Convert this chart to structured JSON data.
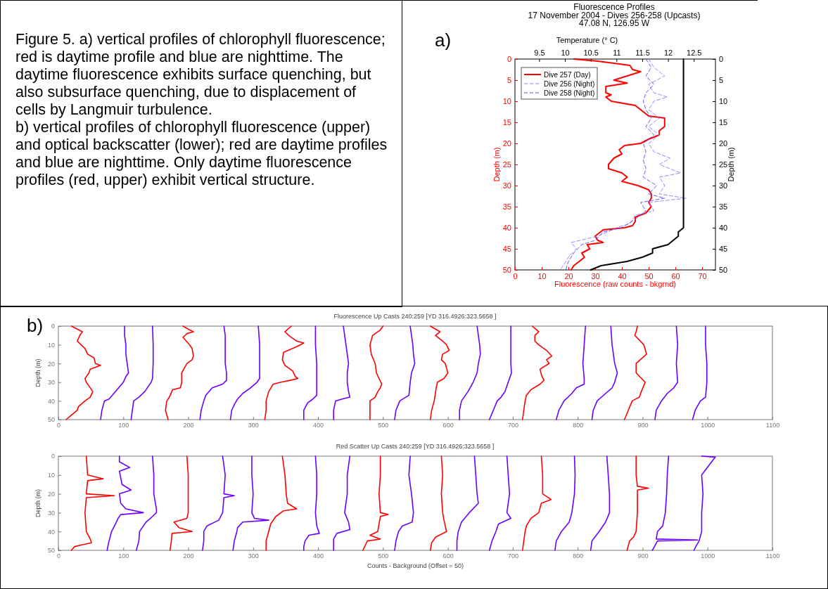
{
  "chart_data": [
    {
      "type": "other",
      "annotations": [
        "Figure 5.  a) vertical profiles of chlorophyll fluorescence; red is daytime profile and blue are nighttime.  The daytime fluorescence exhibits surface quenching, but also subsurface quenching, due to displacement of cells by Langmuir turbulence.",
        "b) vertical profiles of chlorophyll fluorescence (upper) and optical backscatter (lower); red are daytime profiles and blue are nighttime.  Only daytime fluorescence profiles (red, upper) exhibit vertical structure."
      ]
    },
    {
      "type": "line",
      "title": "Fluorescence Profiles",
      "subtitle": "17 November 2004 - Dives 256-258 (Upcasts)\n47.08 N, 126.95 W",
      "xlabel": "Fluorescence (raw counts - bkgrnd)",
      "x2label": "Temperature (° C)",
      "ylabel": "Depth (m)",
      "y2label": "Depth (m)",
      "annotations": [
        "a)"
      ],
      "xlim": [
        0,
        75
      ],
      "xticks": [
        0,
        10,
        20,
        30,
        40,
        50,
        60,
        70
      ],
      "x2lim": [
        9.03,
        12.92
      ],
      "x2ticks": [
        9.5,
        10,
        10.5,
        11,
        11.5,
        12,
        12.5
      ],
      "ylim": [
        50,
        0
      ],
      "yticks": [
        0,
        5,
        10,
        15,
        20,
        25,
        30,
        35,
        40,
        45,
        50
      ],
      "y2lim": [
        50,
        0
      ],
      "y2ticks": [
        0,
        5,
        10,
        15,
        20,
        25,
        30,
        35,
        40,
        45,
        50
      ],
      "legend": "top left",
      "series": [
        {
          "name": "Dive 257 (Day)",
          "color": "#ff0000",
          "line_style": "solid",
          "x": [
            22,
            31,
            43,
            44,
            47,
            37,
            42,
            34,
            34,
            36,
            34,
            36,
            45,
            47,
            50,
            56,
            56,
            54,
            54,
            50,
            47,
            41,
            39,
            40,
            37,
            35,
            35,
            40,
            42,
            40,
            46,
            50,
            51,
            51,
            50,
            51,
            49,
            45,
            45,
            44,
            41,
            33,
            32,
            30,
            31,
            33,
            27,
            28,
            25,
            26,
            24,
            22,
            21
          ],
          "values": [
            0,
            0.5,
            1.5,
            2.5,
            3,
            5,
            5.7,
            6.5,
            8,
            8.5,
            9,
            10,
            11,
            12,
            13.5,
            14,
            16,
            17,
            18,
            19,
            20,
            20.5,
            21.5,
            22.5,
            23.5,
            25,
            26,
            27,
            28,
            29,
            30,
            31,
            32,
            33,
            34,
            35,
            36.5,
            37.5,
            38.5,
            39.5,
            40,
            40.5,
            41,
            42,
            43,
            43.5,
            44,
            45,
            46,
            47,
            48,
            49,
            50
          ]
        },
        {
          "name": "Dive 256 (Night)",
          "color": "#8080ff",
          "line_style": "dashed",
          "x": [
            50,
            52,
            56,
            50,
            52,
            57,
            52,
            50,
            54,
            50,
            54,
            50,
            52,
            58,
            54,
            62,
            54,
            56,
            54,
            64,
            50,
            52,
            45,
            43,
            38,
            31,
            21,
            23,
            20,
            17
          ],
          "values": [
            0,
            2,
            4,
            6,
            8,
            9,
            10,
            12,
            14,
            16,
            18,
            20,
            22,
            23.5,
            25,
            27,
            28,
            30,
            32,
            33,
            34,
            36,
            37,
            39,
            40,
            42,
            43.5,
            45,
            47,
            50
          ]
        },
        {
          "name": "Dive 258 (Night)",
          "color": "#4d4dff",
          "line_style": "dashed",
          "x": [
            49,
            51,
            49,
            52,
            49,
            48,
            49,
            51,
            49,
            52,
            48,
            49,
            48,
            49,
            48,
            53,
            50,
            56,
            47,
            49,
            45,
            40,
            33,
            30,
            25,
            22,
            20,
            19
          ],
          "values": [
            0,
            2,
            4,
            6,
            8,
            10,
            12,
            14,
            16,
            18,
            20,
            22,
            24,
            26,
            28,
            30,
            32,
            33,
            34,
            36,
            38,
            40,
            41,
            43,
            44,
            46,
            48,
            50
          ]
        },
        {
          "color": "#000000",
          "line_style": "solid",
          "axis": "x2",
          "x": [
            12.3,
            12.3,
            12.3,
            12.2,
            12.2,
            12.1,
            12,
            11.7,
            11.7,
            11.5,
            11.2,
            10.7,
            10.5
          ],
          "values": [
            0,
            39,
            40,
            41,
            42,
            43,
            44,
            45,
            46,
            47,
            48,
            49,
            50
          ]
        }
      ]
    },
    {
      "type": "line",
      "title": "Fluorescence Up Casts 240:259 [YD 316.4926:323.5658 ]",
      "ylabel": "Depth (m)",
      "annotations": [
        "b)"
      ],
      "xlim": [
        0,
        1100
      ],
      "xticks": [
        0,
        100,
        200,
        300,
        400,
        500,
        600,
        700,
        800,
        900,
        1000,
        1100
      ],
      "ylim": [
        50,
        0
      ],
      "yticks": [
        0,
        10,
        20,
        30,
        40,
        50
      ],
      "series": [
        {
          "color": "#ff0000",
          "x": [
            20,
            37,
            33,
            29,
            35,
            41,
            45,
            55,
            57,
            65,
            49,
            47,
            41,
            43,
            53,
            49,
            41,
            31,
            29,
            22,
            12
          ],
          "values": [
            0,
            3,
            5,
            8,
            10,
            12,
            15,
            17,
            20,
            21,
            23,
            25,
            28,
            30,
            35,
            38,
            40,
            43,
            45,
            47,
            50
          ]
        },
        {
          "color": "#6a00ff",
          "x": [
            102,
            102,
            104,
            104,
            106,
            108,
            104,
            100,
            88,
            78,
            71,
            67,
            65
          ],
          "values": [
            0,
            5,
            10,
            15,
            20,
            25,
            27,
            30,
            35,
            39,
            40,
            45,
            50
          ]
        },
        {
          "color": "#6a00ff",
          "x": [
            145,
            146,
            146,
            145,
            143,
            133,
            124,
            116,
            114,
            112
          ],
          "values": [
            0,
            10,
            20,
            28,
            30,
            35,
            38,
            40,
            45,
            50
          ]
        },
        {
          "color": "#ff0000",
          "x": [
            192,
            202,
            208,
            198,
            192,
            202,
            206,
            208,
            206,
            198,
            190,
            190,
            188,
            176,
            171,
            167,
            165,
            169
          ],
          "values": [
            0,
            2,
            3,
            4,
            6,
            10,
            12,
            16,
            18,
            20,
            25,
            30,
            33,
            34,
            38,
            40,
            45,
            50
          ]
        },
        {
          "color": "#6a00ff",
          "x": [
            255,
            257,
            257,
            257,
            259,
            259,
            253,
            237,
            227,
            224,
            220,
            218
          ],
          "values": [
            0,
            5,
            10,
            20,
            25,
            29,
            31,
            33,
            37,
            40,
            45,
            50
          ]
        },
        {
          "color": "#6a00ff",
          "x": [
            308,
            310,
            310,
            310,
            306,
            296,
            284,
            276,
            271,
            267,
            265
          ],
          "values": [
            0,
            10,
            20,
            28,
            30,
            33,
            36,
            39,
            42,
            45,
            50
          ]
        },
        {
          "color": "#ff0000",
          "x": [
            359,
            349,
            355,
            367,
            378,
            367,
            347,
            345,
            349,
            361,
            365,
            369,
            357,
            343,
            331,
            324,
            320,
            320,
            318
          ],
          "values": [
            0,
            3,
            5,
            8,
            9,
            11,
            14,
            18,
            21,
            24,
            27,
            28,
            29,
            30,
            31,
            35,
            40,
            45,
            50
          ]
        },
        {
          "color": "#6a00ff",
          "x": [
            396,
            396,
            398,
            398,
            398,
            392,
            384,
            378,
            378
          ],
          "values": [
            0,
            10,
            20,
            30,
            37,
            39,
            41,
            45,
            50
          ]
        },
        {
          "color": "#6a00ff",
          "x": [
            439,
            441,
            443,
            445,
            447,
            445,
            445,
            447,
            449,
            437,
            427,
            424,
            424
          ],
          "values": [
            0,
            5,
            10,
            15,
            20,
            25,
            30,
            35,
            38,
            39,
            40,
            45,
            50
          ]
        },
        {
          "color": "#ff0000",
          "x": [
            500,
            496,
            484,
            480,
            482,
            488,
            490,
            494,
            498,
            496,
            492,
            488,
            480,
            480,
            480
          ],
          "values": [
            0,
            2,
            5,
            10,
            15,
            20,
            25,
            28,
            31,
            33,
            35,
            38,
            40,
            45,
            50
          ]
        },
        {
          "color": "#6a00ff",
          "x": [
            542,
            544,
            546,
            547,
            549,
            544,
            542,
            540,
            526,
            520,
            518
          ],
          "values": [
            0,
            5,
            10,
            15,
            20,
            25,
            30,
            37,
            40,
            45,
            50
          ]
        },
        {
          "color": "#ff0000",
          "x": [
            573,
            588,
            581,
            592,
            598,
            602,
            592,
            590,
            596,
            600,
            594,
            584,
            582,
            579,
            575,
            573
          ],
          "values": [
            0,
            3,
            5,
            8,
            10,
            13,
            15,
            18,
            20,
            25,
            28,
            30,
            33,
            40,
            45,
            50
          ]
        },
        {
          "color": "#6a00ff",
          "x": [
            645,
            647,
            649,
            650,
            647,
            645,
            639,
            631,
            621,
            618,
            618
          ],
          "values": [
            0,
            5,
            10,
            15,
            20,
            25,
            30,
            35,
            40,
            45,
            50
          ]
        },
        {
          "color": "#6a00ff",
          "x": [
            697,
            697,
            697,
            698,
            693,
            688,
            682,
            676,
            670,
            664
          ],
          "values": [
            0,
            10,
            20,
            25,
            30,
            35,
            38,
            40,
            45,
            50
          ]
        },
        {
          "color": "#ff0000",
          "x": [
            730,
            740,
            734,
            734,
            740,
            752,
            760,
            752,
            756,
            742,
            744,
            748,
            742,
            728,
            721,
            719,
            717,
            715
          ],
          "values": [
            0,
            3,
            5,
            8,
            10,
            13,
            16,
            18,
            20,
            23,
            26,
            29,
            31,
            34,
            37,
            40,
            45,
            50
          ]
        },
        {
          "color": "#6a00ff",
          "x": [
            812,
            810,
            808,
            810,
            810,
            798,
            791,
            779,
            771,
            767
          ],
          "values": [
            0,
            10,
            20,
            28,
            31,
            33,
            36,
            40,
            45,
            50
          ]
        },
        {
          "color": "#6a00ff",
          "x": [
            851,
            853,
            857,
            861,
            857,
            853,
            843,
            830,
            824,
            822
          ],
          "values": [
            0,
            10,
            20,
            25,
            30,
            33,
            36,
            40,
            45,
            50
          ]
        },
        {
          "color": "#ff0000",
          "x": [
            892,
            890,
            888,
            902,
            906,
            890,
            890,
            904,
            898,
            895,
            884,
            878,
            872
          ],
          "values": [
            0,
            3,
            5,
            10,
            15,
            20,
            25,
            30,
            35,
            38,
            40,
            45,
            50
          ]
        },
        {
          "color": "#6a00ff",
          "x": [
            952,
            954,
            952,
            954,
            948,
            938,
            929,
            921,
            919
          ],
          "values": [
            0,
            10,
            20,
            30,
            33,
            36,
            40,
            45,
            50
          ]
        },
        {
          "color": "#6a00ff",
          "x": [
            997,
            997,
            999,
            999,
            997,
            989,
            981,
            977
          ],
          "values": [
            0,
            10,
            20,
            30,
            38,
            40,
            45,
            50
          ]
        }
      ]
    },
    {
      "type": "line",
      "title": "Red Scatter Up Casts 240:259 [YD 316.4926:323.5658 ]",
      "xlabel": "Counts - Background (Offset = 50)",
      "ylabel": "Depth (m)",
      "xlim": [
        0,
        1100
      ],
      "xticks": [
        0,
        100,
        200,
        300,
        400,
        500,
        600,
        700,
        800,
        900,
        1000,
        1100
      ],
      "ylim": [
        50,
        0
      ],
      "yticks": [
        0,
        10,
        20,
        30,
        40,
        50
      ],
      "series": [
        {
          "color": "#ff0000",
          "x": [
            43,
            45,
            69,
            45,
            43,
            86,
            43,
            41,
            43,
            49,
            51,
            37,
            25,
            20
          ],
          "values": [
            0,
            10,
            12,
            13,
            20,
            21,
            22,
            30,
            40,
            44,
            46,
            47,
            48,
            50
          ]
        },
        {
          "color": "#6a00ff",
          "x": [
            94,
            94,
            110,
            94,
            98,
            112,
            94,
            96,
            104,
            131,
            96,
            92,
            88,
            82,
            78,
            75
          ],
          "values": [
            0,
            3,
            6,
            8,
            15,
            18,
            20,
            25,
            28,
            30,
            31,
            33,
            36,
            40,
            45,
            50
          ]
        },
        {
          "color": "#6a00ff",
          "x": [
            145,
            147,
            147,
            151,
            151,
            145,
            135,
            129,
            125,
            124,
            120
          ],
          "values": [
            0,
            10,
            20,
            28,
            30,
            32,
            35,
            38,
            40,
            45,
            50
          ]
        },
        {
          "color": "#ff0000",
          "x": [
            198,
            200,
            200,
            200,
            198,
            178,
            186,
            206,
            175,
            174,
            172
          ],
          "values": [
            0,
            10,
            20,
            30,
            33,
            35,
            38,
            40,
            41,
            45,
            50
          ]
        },
        {
          "color": "#6a00ff",
          "x": [
            253,
            257,
            255,
            271,
            255,
            253,
            247,
            229,
            224,
            224,
            222
          ],
          "values": [
            0,
            10,
            20,
            21,
            22,
            30,
            34,
            37,
            40,
            45,
            50
          ]
        },
        {
          "color": "#6a00ff",
          "x": [
            298,
            298,
            300,
            298,
            302,
            324,
            284,
            276,
            275,
            271,
            269
          ],
          "values": [
            0,
            10,
            20,
            30,
            33,
            34,
            35,
            38,
            40,
            45,
            50
          ]
        },
        {
          "color": "#ff0000",
          "x": [
            345,
            349,
            351,
            353,
            367,
            347,
            335,
            327,
            324,
            320,
            320
          ],
          "values": [
            0,
            10,
            20,
            25,
            28,
            29,
            32,
            36,
            40,
            45,
            50
          ]
        },
        {
          "color": "#6a00ff",
          "x": [
            396,
            398,
            398,
            396,
            398,
            402,
            386,
            380,
            378,
            378
          ],
          "values": [
            0,
            10,
            20,
            30,
            37,
            41,
            42,
            45,
            48,
            50
          ]
        },
        {
          "color": "#6a00ff",
          "x": [
            449,
            445,
            445,
            441,
            447,
            449,
            429,
            424,
            424
          ],
          "values": [
            0,
            10,
            20,
            30,
            35,
            39,
            41,
            44,
            50
          ]
        },
        {
          "color": "#ff0000",
          "x": [
            496,
            496,
            494,
            496,
            508,
            496,
            492,
            480,
            496,
            476,
            469
          ],
          "values": [
            0,
            10,
            20,
            30,
            31,
            32,
            40,
            42,
            44,
            45,
            50
          ]
        },
        {
          "color": "#6a00ff",
          "x": [
            542,
            540,
            544,
            547,
            545,
            530,
            524,
            520,
            518
          ],
          "values": [
            0,
            10,
            20,
            30,
            35,
            37,
            40,
            45,
            50
          ]
        },
        {
          "color": "#ff0000",
          "x": [
            590,
            592,
            590,
            592,
            594,
            598,
            581,
            575,
            573
          ],
          "values": [
            0,
            10,
            20,
            30,
            34,
            40,
            43,
            46,
            50
          ]
        },
        {
          "color": "#6a00ff",
          "x": [
            641,
            643,
            645,
            647,
            633,
            621,
            616,
            614,
            614
          ],
          "values": [
            0,
            10,
            20,
            25,
            30,
            35,
            40,
            45,
            50
          ]
        },
        {
          "color": "#6a00ff",
          "x": [
            691,
            693,
            695,
            691,
            697,
            678,
            674,
            668,
            664
          ],
          "values": [
            0,
            10,
            20,
            30,
            33,
            36,
            40,
            45,
            50
          ]
        },
        {
          "color": "#ff0000",
          "x": [
            744,
            746,
            746,
            759,
            744,
            740,
            728,
            721,
            719,
            717,
            715
          ],
          "values": [
            0,
            10,
            20,
            23,
            25,
            30,
            33,
            37,
            40,
            45,
            50
          ]
        },
        {
          "color": "#6a00ff",
          "x": [
            795,
            796,
            795,
            791,
            787,
            775,
            767,
            765
          ],
          "values": [
            0,
            10,
            20,
            30,
            35,
            40,
            45,
            50
          ]
        },
        {
          "color": "#6a00ff",
          "x": [
            845,
            847,
            849,
            849,
            843,
            833,
            822,
            820
          ],
          "values": [
            0,
            10,
            20,
            30,
            35,
            40,
            45,
            50
          ]
        },
        {
          "color": "#ff0000",
          "x": [
            890,
            890,
            892,
            909,
            892,
            892,
            890,
            886,
            880,
            876
          ],
          "values": [
            0,
            10,
            16,
            17,
            18,
            30,
            40,
            43,
            45,
            50
          ]
        },
        {
          "color": "#6a00ff",
          "x": [
            940,
            938,
            937,
            935,
            931,
            923,
            921,
            985,
            923,
            915
          ],
          "values": [
            0,
            10,
            20,
            30,
            37,
            40,
            44,
            44.5,
            45,
            50
          ]
        },
        {
          "color": "#6a00ff",
          "x": [
            991,
            1012,
            991,
            993,
            991,
            991,
            987,
            982,
            979
          ],
          "values": [
            0,
            0.5,
            10,
            20,
            30,
            40,
            45,
            48,
            50
          ]
        }
      ]
    }
  ]
}
